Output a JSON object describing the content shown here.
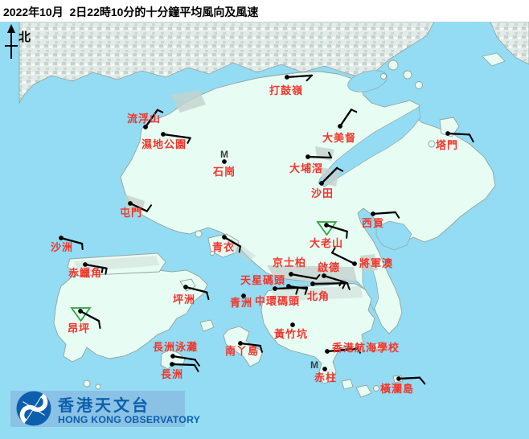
{
  "title": "2022年10月  2日22時10分的十分鐘平均風向及風速",
  "north_label": "北",
  "map": {
    "sea_color": "#93dcf3",
    "land_color": "#e7fcf3",
    "coast_color": "#93a39e",
    "urban_color": "#c6d2ce",
    "label_color": "#f4342a",
    "barb_color": "#000000",
    "triangle_color": "#2ca33c",
    "m_symbol": "M"
  },
  "logo": {
    "chinese": "香港天文台",
    "english": "HONG KONG OBSERVATORY",
    "banner_color": "#8ac2e5",
    "blue": "#0d5fad"
  },
  "stations": [
    {
      "id": "ta-kwu-ling",
      "name": "打鼓嶺",
      "dot": [
        357,
        96
      ],
      "label": [
        356,
        117
      ],
      "marker": "dot",
      "barb": {
        "angle": -4,
        "len": 31,
        "ticks": [
          {
            "at": 1,
            "angle": 135,
            "len": 9
          }
        ]
      }
    },
    {
      "id": "lau-fau-shan",
      "name": "流浮山",
      "dot": [
        181,
        158
      ],
      "label": [
        179,
        152
      ],
      "marker": "dot",
      "barb": {
        "angle": -55,
        "len": 26,
        "ticks": [
          {
            "at": 1,
            "angle": 25,
            "len": 7
          }
        ]
      }
    },
    {
      "id": "wetland-park",
      "name": "濕地公園",
      "dot": [
        203,
        167
      ],
      "label": [
        204,
        184
      ],
      "marker": "dot",
      "barb": {
        "angle": 8,
        "len": 34,
        "ticks": [
          {
            "at": 1,
            "angle": 118,
            "len": 7
          }
        ]
      }
    },
    {
      "id": "shek-kong",
      "name": "石崗",
      "dot": [
        279,
        201
      ],
      "label": [
        279,
        218
      ],
      "marker": "dot",
      "m": [
        279,
        196
      ],
      "barb": null
    },
    {
      "id": "tai-mei-tuk",
      "name": "大美督",
      "dot": [
        423,
        157
      ],
      "label": [
        422,
        176
      ],
      "marker": "dot",
      "barb": {
        "angle": -56,
        "len": 25,
        "ticks": [
          {
            "at": 1,
            "angle": 25,
            "len": 7
          }
        ]
      }
    },
    {
      "id": "tap-mun",
      "name": "塔門",
      "dot": [
        557,
        166
      ],
      "label": [
        556,
        185
      ],
      "marker": "dot",
      "barb": {
        "angle": 3,
        "len": 27,
        "ticks": [
          {
            "at": 1,
            "angle": 62,
            "len": 10
          }
        ]
      }
    },
    {
      "id": "tai-po-kau",
      "name": "大埔滘",
      "dot": [
        383,
        195
      ],
      "label": [
        381,
        214
      ],
      "marker": "dot",
      "barb": {
        "angle": 2,
        "len": 29,
        "ticks": [
          {
            "at": 1,
            "angle": -115,
            "len": 7
          }
        ]
      }
    },
    {
      "id": "sha-tin",
      "name": "沙田",
      "dot": [
        400,
        228
      ],
      "label": [
        401,
        245
      ],
      "marker": "dot",
      "barb": {
        "angle": -45,
        "len": 27,
        "ticks": [
          {
            "at": 1,
            "angle": 28,
            "len": 8
          }
        ]
      }
    },
    {
      "id": "tuen-mun",
      "name": "屯門",
      "dot": [
        162,
        253
      ],
      "label": [
        163,
        269
      ],
      "marker": "dot",
      "barb": {
        "angle": 25,
        "len": 23,
        "ticks": [
          {
            "at": 1,
            "angle": -55,
            "len": 9
          }
        ]
      }
    },
    {
      "id": "sha-chau",
      "name": "沙洲",
      "dot": [
        76,
        296
      ],
      "label": [
        77,
        312
      ],
      "marker": "dot",
      "barb": {
        "angle": 15,
        "len": 27,
        "ticks": [
          {
            "at": 1,
            "angle": 85,
            "len": 7
          }
        ]
      }
    },
    {
      "id": "chek-lap-kok",
      "name": "赤鱲角",
      "dot": [
        106,
        329
      ],
      "label": [
        106,
        344
      ],
      "marker": "dot",
      "barb": {
        "angle": 10,
        "len": 27,
        "ticks": [
          {
            "at": 1,
            "angle": 100,
            "len": 7
          },
          {
            "at": 0.82,
            "angle": 100,
            "len": 6
          }
        ]
      }
    },
    {
      "id": "tsing-yi",
      "name": "青衣",
      "dot": [
        279,
        295
      ],
      "label": [
        278,
        312
      ],
      "marker": "dot",
      "barb": {
        "angle": 30,
        "len": 23,
        "ticks": [
          {
            "at": 1,
            "angle": 100,
            "len": 7
          }
        ]
      }
    },
    {
      "id": "tates-cairn",
      "name": "大老山",
      "dot": [
        406,
        280
      ],
      "label": [
        406,
        307
      ],
      "marker": "triangle",
      "barb": {
        "angle": 17,
        "len": 27,
        "ticks": [
          {
            "at": 1,
            "angle": 95,
            "len": 8
          }
        ]
      }
    },
    {
      "id": "sai-kung",
      "name": "西貢",
      "dot": [
        464,
        266
      ],
      "label": [
        464,
        282
      ],
      "marker": "dot",
      "barb": {
        "angle": -4,
        "len": 28,
        "ticks": [
          {
            "at": 1,
            "angle": 58,
            "len": 8
          }
        ]
      }
    },
    {
      "id": "tseung-kwan-o",
      "name": "將軍澳",
      "dot": [
        441,
        328
      ],
      "label": [
        468,
        332
      ],
      "marker": "dot",
      "barb": {
        "angle": -154,
        "len": 31,
        "ticks": [
          {
            "at": 1,
            "angle": -60,
            "len": 7
          }
        ]
      }
    },
    {
      "id": "kings-park",
      "name": "京士柏",
      "dot": [
        362,
        341
      ],
      "label": [
        360,
        331
      ],
      "marker": "dot",
      "barb": {
        "angle": 10,
        "len": 32,
        "ticks": [
          {
            "at": 1,
            "angle": -50,
            "len": 6
          }
        ]
      }
    },
    {
      "id": "kai-tak",
      "name": "啟德",
      "dot": [
        403,
        343
      ],
      "label": [
        409,
        337
      ],
      "marker": "dot",
      "barb": {
        "angle": 17,
        "len": 28,
        "ticks": [
          {
            "at": 1,
            "angle": 115,
            "len": 8
          },
          {
            "at": 0.82,
            "angle": 115,
            "len": 6
          }
        ]
      }
    },
    {
      "id": "star-ferry",
      "name": "天星碼頭",
      "dot": [
        359,
        356
      ],
      "label": [
        327,
        353
      ],
      "marker": "dot",
      "barb": {
        "angle": 8,
        "len": 23,
        "ticks": [
          {
            "at": 1,
            "angle": 108,
            "len": 7
          }
        ]
      }
    },
    {
      "id": "central-pier",
      "name": "中環碼頭",
      "dot": [
        342,
        359
      ],
      "label": [
        345,
        379
      ],
      "marker": "dot",
      "barb": {
        "angle": -2,
        "len": 40,
        "ticks": [
          {
            "at": 0.72,
            "angle": 108,
            "len": 8
          }
        ]
      }
    },
    {
      "id": "north-point",
      "name": "北角",
      "dot": [
        389,
        353
      ],
      "label": [
        396,
        373
      ],
      "marker": "dot",
      "barb": {
        "angle": -1,
        "len": 43,
        "ticks": [
          {
            "at": 1,
            "angle": 70,
            "len": 8
          }
        ]
      }
    },
    {
      "id": "green-island",
      "name": "青洲",
      "dot": [
        303,
        368
      ],
      "label": [
        300,
        381
      ],
      "marker": "dot",
      "barb": null
    },
    {
      "id": "peng-chau",
      "name": "坪洲",
      "dot": [
        231,
        357
      ],
      "label": [
        229,
        377
      ],
      "marker": "dot",
      "barb": {
        "angle": 14,
        "len": 27,
        "ticks": [
          {
            "at": 1,
            "angle": 75,
            "len": 9
          }
        ]
      }
    },
    {
      "id": "wong-chuk-hang",
      "name": "黃竹坑",
      "dot": [
        364,
        404
      ],
      "label": [
        362,
        420
      ],
      "marker": "dot",
      "barb": null
    },
    {
      "id": "ngong-ping",
      "name": "昂坪",
      "dot": [
        100,
        387
      ],
      "label": [
        98,
        413
      ],
      "marker": "triangle",
      "barb": {
        "angle": 28,
        "len": 26,
        "ticks": [
          {
            "at": 1,
            "angle": 80,
            "len": 9
          }
        ]
      }
    },
    {
      "id": "cheung-chau-beach",
      "name": "長洲泳灘",
      "dot": [
        215,
        443
      ],
      "label": [
        218,
        436
      ],
      "marker": "dot",
      "barb": {
        "angle": 9,
        "len": 28,
        "ticks": [
          {
            "at": 1,
            "angle": 55,
            "len": 9
          }
        ]
      }
    },
    {
      "id": "cheung-chau",
      "name": "長洲",
      "dot": [
        214,
        453
      ],
      "label": [
        214,
        470
      ],
      "marker": "dot",
      "barb": {
        "angle": 2,
        "len": 28,
        "ticks": [
          {
            "at": 1,
            "angle": 60,
            "len": 9
          }
        ]
      }
    },
    {
      "id": "lamma-island",
      "name": "南丫島",
      "dot": [
        299,
        427
      ],
      "label": [
        301,
        441
      ],
      "marker": "dot",
      "barb": {
        "angle": 7,
        "len": 25,
        "ticks": [
          {
            "at": 1,
            "angle": 75,
            "len": 8
          }
        ]
      }
    },
    {
      "id": "hk-sea-school",
      "name": "香港航海學校",
      "dot": [
        407,
        437
      ],
      "label": [
        455,
        437
      ],
      "marker": "dot",
      "barb": {
        "angle": -5,
        "len": 38,
        "ticks": [
          {
            "at": 1,
            "angle": 58,
            "len": 6
          }
        ]
      }
    },
    {
      "id": "stanley",
      "name": "赤柱",
      "dot": [
        404,
        459
      ],
      "label": [
        405,
        474
      ],
      "marker": "dot",
      "m": [
        391,
        458
      ],
      "barb": null
    },
    {
      "id": "waglan-island",
      "name": "橫瀾島",
      "dot": [
        496,
        471
      ],
      "label": [
        494,
        488
      ],
      "marker": "dot",
      "barb": {
        "angle": -3,
        "len": 26,
        "ticks": [
          {
            "at": 1,
            "angle": 50,
            "len": 10
          }
        ]
      }
    }
  ]
}
